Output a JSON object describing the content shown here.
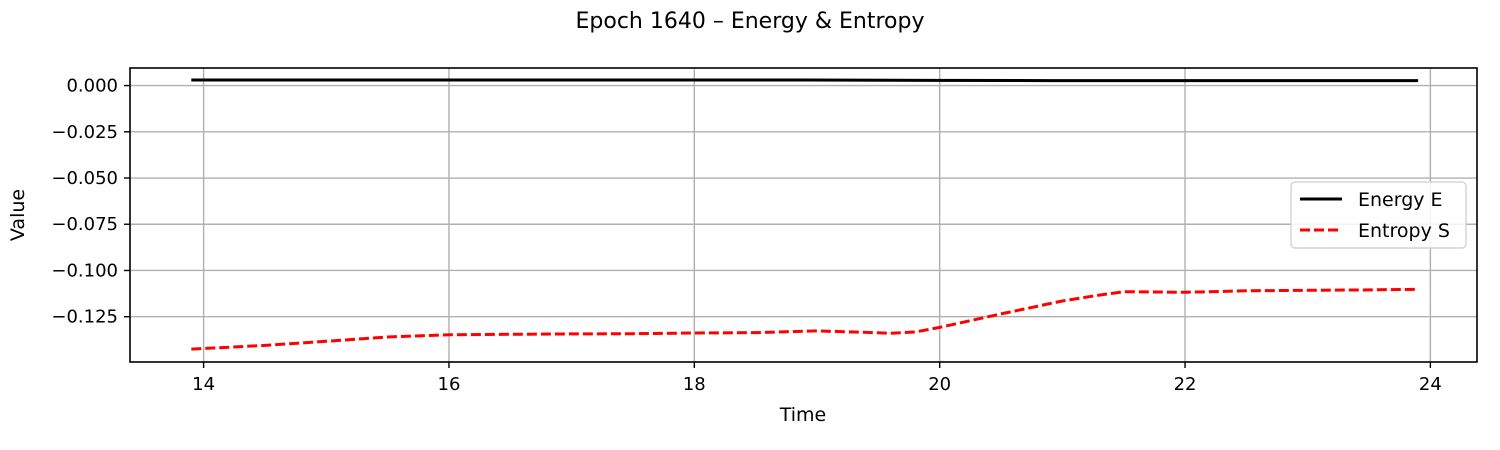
{
  "chart_data": {
    "type": "line",
    "title": "Epoch 1640 – Energy & Entropy",
    "xlabel": "Time",
    "ylabel": "Value",
    "xlim": [
      13.4,
      24.38
    ],
    "ylim": [
      -0.1495,
      0.0095
    ],
    "xticks": [
      14,
      16,
      18,
      20,
      22,
      24
    ],
    "yticks": [
      0.0,
      -0.025,
      -0.05,
      -0.075,
      -0.1,
      -0.125
    ],
    "ytick_labels": [
      "0.000",
      "−0.025",
      "−0.050",
      "−0.075",
      "−0.100",
      "−0.125"
    ],
    "xtick_labels": [
      "14",
      "16",
      "18",
      "20",
      "22",
      "24"
    ],
    "grid": true,
    "legend_position": "center-right",
    "series": [
      {
        "name": "Energy E",
        "color": "#000000",
        "style": "solid",
        "x": [
          13.9,
          14.9,
          15.9,
          16.9,
          17.9,
          18.9,
          19.9,
          20.9,
          21.9,
          22.9,
          23.9
        ],
        "y": [
          0.003,
          0.003,
          0.003,
          0.003,
          0.003,
          0.003,
          0.0028,
          0.0027,
          0.0027,
          0.0027,
          0.0027
        ]
      },
      {
        "name": "Entropy S",
        "color": "#ff0000",
        "style": "dashed",
        "x": [
          13.9,
          14.5,
          15.0,
          15.5,
          16.0,
          16.5,
          17.0,
          17.5,
          18.0,
          18.5,
          19.0,
          19.3,
          19.6,
          19.8,
          20.0,
          20.5,
          21.0,
          21.3,
          21.5,
          21.7,
          22.0,
          22.5,
          23.0,
          23.5,
          23.9
        ],
        "y": [
          -0.1425,
          -0.1405,
          -0.1383,
          -0.136,
          -0.1348,
          -0.1345,
          -0.1343,
          -0.1342,
          -0.1338,
          -0.1336,
          -0.1327,
          -0.1333,
          -0.1339,
          -0.1333,
          -0.1308,
          -0.1235,
          -0.1165,
          -0.1133,
          -0.1115,
          -0.1116,
          -0.1118,
          -0.111,
          -0.1107,
          -0.1105,
          -0.1102
        ]
      }
    ]
  }
}
